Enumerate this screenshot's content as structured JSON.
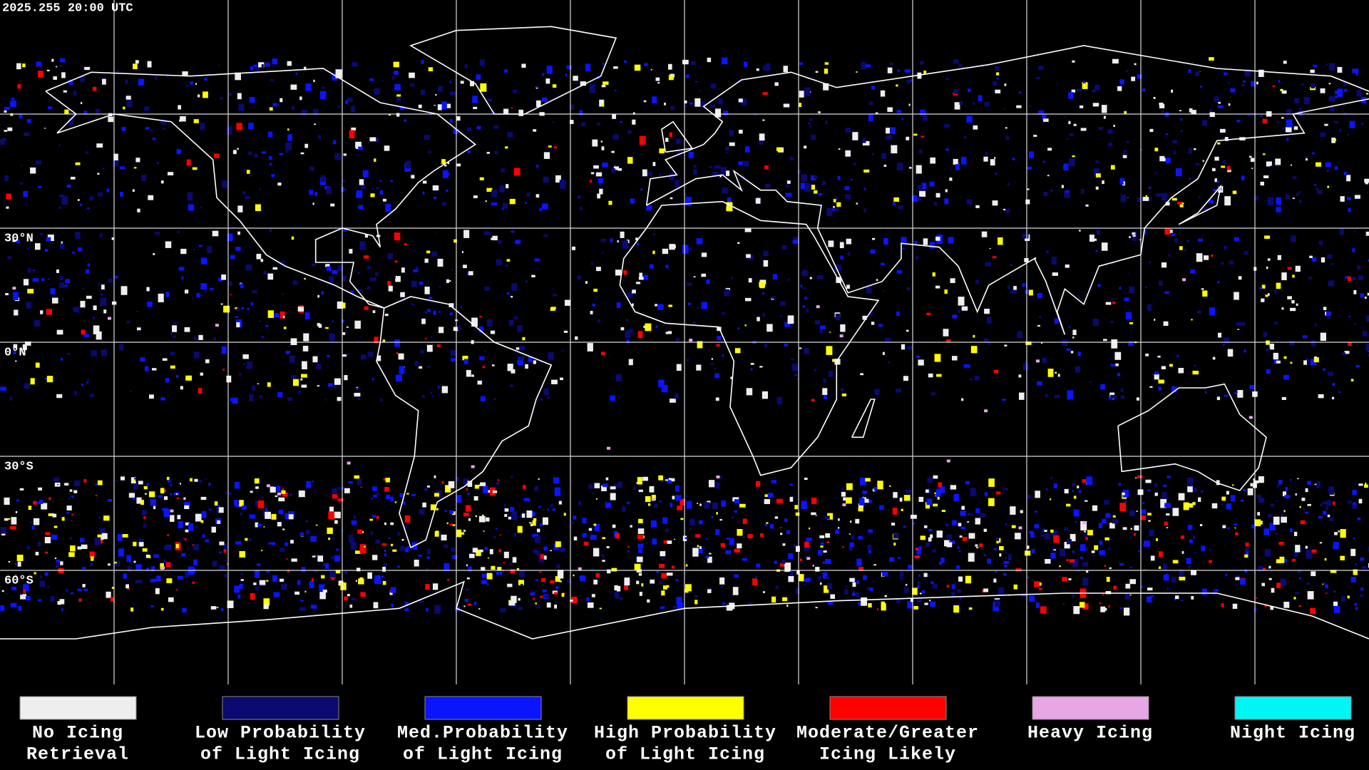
{
  "header": {
    "timestamp": "2025.255 20:00 UTC"
  },
  "map": {
    "latitude_labels": [
      "30°N",
      "0°N",
      "30°S",
      "60°S"
    ]
  },
  "legend": {
    "items": [
      {
        "color": "#eeeeee",
        "lines": [
          "No Icing",
          "Retrieval"
        ]
      },
      {
        "color": "#0a0a70",
        "lines": [
          "Low Probability",
          "of Light Icing"
        ]
      },
      {
        "color": "#0a14ff",
        "lines": [
          "Med.Probability",
          "of Light Icing"
        ]
      },
      {
        "color": "#ffff00",
        "lines": [
          "High Probability",
          "of Light Icing"
        ]
      },
      {
        "color": "#ff0000",
        "lines": [
          "Moderate/Greater",
          "Icing Likely"
        ]
      },
      {
        "color": "#e8a6e6",
        "lines": [
          "Heavy Icing"
        ]
      },
      {
        "color": "#00f5f5",
        "lines": [
          "Night Icing"
        ]
      }
    ]
  }
}
